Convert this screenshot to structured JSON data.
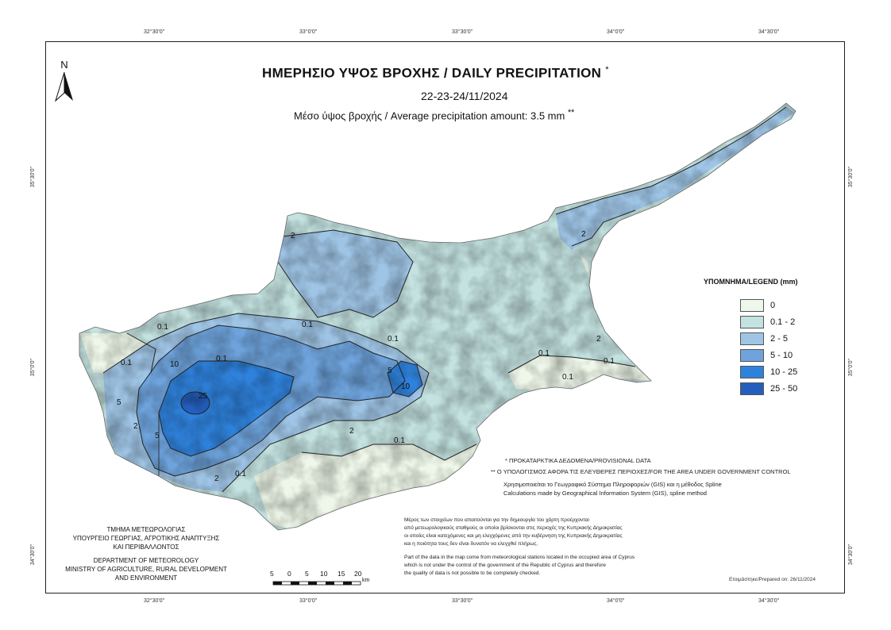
{
  "map": {
    "title": "ΗΜΕΡΗΣΙΟ ΥΨΟΣ ΒΡΟΧΗΣ / DAILY PRECIPITATION",
    "title_mark": "*",
    "date": "22-23-24/11/2024",
    "average": "Μέσο ύψος βροχής / Average precipitation amount: 3.5 mm",
    "average_mark": "**",
    "north_label": "N"
  },
  "coordinates": {
    "top": [
      "32°30'0\"",
      "33°0'0\"",
      "33°30'0\"",
      "34°0'0\"",
      "34°30'0\""
    ],
    "bottom": [
      "32°30'0\"",
      "33°0'0\"",
      "33°30'0\"",
      "34°0'0\"",
      "34°30'0\""
    ],
    "left": [
      "35°30'0\"",
      "35°0'0\"",
      "34°30'0\""
    ],
    "right": [
      "35°30'0\"",
      "35°0'0\"",
      "34°30'0\""
    ]
  },
  "legend": {
    "title": "ΥΠΟΜΝΗΜΑ/LEGEND (mm)",
    "items": [
      {
        "label": "0",
        "color": "#eef7e9"
      },
      {
        "label": "0.1 - 2",
        "color": "#c3e2e0"
      },
      {
        "label": "2 - 5",
        "color": "#9fc5e6"
      },
      {
        "label": "5 - 10",
        "color": "#6ea3dc"
      },
      {
        "label": "10 - 25",
        "color": "#2f82dc"
      },
      {
        "label": "25 - 50",
        "color": "#245fbd"
      }
    ]
  },
  "contour_labels": [
    "2",
    "2",
    "0.1",
    "0.1",
    "0.1",
    "0.1",
    "0.1",
    "0.1",
    "0.1",
    "0.1",
    "10",
    "10",
    "25",
    "5",
    "5",
    "5",
    "2",
    "2",
    "2",
    "2",
    "0.1",
    "0.1"
  ],
  "notes": {
    "provisional": "* ΠΡΟΚΑΤΑΡΚΤΙΚΑ ΔΕΔΟΜΕΝΑ/PROVISIONAL DATA",
    "government": "** Ο ΥΠΟΛΟΓΙΣΜΟΣ ΑΦΟΡΑ ΤΙΣ ΕΛΕΥΘΕΡΕΣ ΠΕΡΙΟΧΕΣ/FOR THE AREA UNDER GOVERNMENT CONTROL",
    "gis_gr": "Χρησιμοποιείται το Γεωγραφικό Σύστημα Πληροφοριών (GIS) και η μέθοδος Spline",
    "gis_en": "Calculations made by Geographical Information System (GIS), spline method",
    "data_gr_1": "Μέρος των στοιχείων που απαιτούνται για την δημιουργία του χάρτη προέρχονται",
    "data_gr_2": "από μετεωρολογικούς σταθμούς οι οποίοι βρίσκονται στις περιοχές της Κυπριακής Δημοκρατίας",
    "data_gr_3": "οι οποίες είναι κατεχόμενες και μη ελεγχόμενες από την κυβέρνηση της Κυπριακής Δημοκρατίας",
    "data_gr_4": "και η ποιότητα τους δεν είναι δυνατόν να ελεγχθεί πλήρως.",
    "data_en_1": "Part of the data in the map come from meteorological stations located in the occupied area of Cyprus",
    "data_en_2": "which is not under the control of the government of the Republic of Cyprus and therefore",
    "data_en_3": "the quality of data is not possible to be completely checked."
  },
  "department": {
    "line1": "ΤΜΗΜΑ ΜΕΤΕΩΡΟΛΟΓΙΑΣ",
    "line2": "ΥΠΟΥΡΓΕΙΟ ΓΕΩΡΓΙΑΣ, ΑΓΡΟΤΙΚΗΣ ΑΝΑΠΤΥΞΗΣ",
    "line3": "ΚΑΙ ΠΕΡΙΒΑΛΛΟΝΤΟΣ",
    "line4": "DEPARTMENT OF METEOROLOGY",
    "line5": "MINISTRY OF AGRICULTURE, RURAL DEVELOPMENT",
    "line6": "AND ENVIRONMENT"
  },
  "scale": {
    "labels": [
      "5",
      "0",
      "5",
      "10",
      "15",
      "20"
    ],
    "unit": "km"
  },
  "prepared": "Ετοιμάστηκε/Prepared on: 26/11/2024"
}
